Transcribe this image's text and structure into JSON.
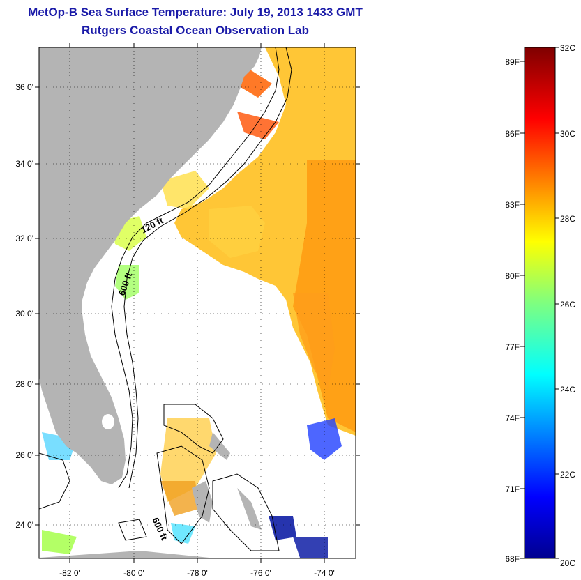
{
  "header": {
    "title": "MetOp-B Sea Surface Temperature:  July 19, 2013 1433 GMT",
    "subtitle": "Rutgers Coastal Ocean Observation Lab"
  },
  "map": {
    "lat_labels": [
      "36 0'",
      "34 0'",
      "32 0'",
      "30 0'",
      "28 0'",
      "26 0'",
      "24 0'"
    ],
    "lon_labels": [
      "-82 0'",
      "-80 0'",
      "-78 0'",
      "-76 0'",
      "-74 0'"
    ],
    "contour_labels": [
      "120 ft",
      "600 ft",
      "600 ft"
    ],
    "land_color": "#b4b4b4",
    "no_data_color": "#ffffff"
  },
  "colorbar": {
    "fahrenheit_labels": [
      "89F",
      "86F",
      "83F",
      "80F",
      "77F",
      "74F",
      "71F",
      "68F"
    ],
    "celsius_labels": [
      "32C",
      "30C",
      "28C",
      "26C",
      "24C",
      "22C",
      "20C"
    ],
    "range_c": [
      20,
      32
    ],
    "colormap": "jet"
  }
}
